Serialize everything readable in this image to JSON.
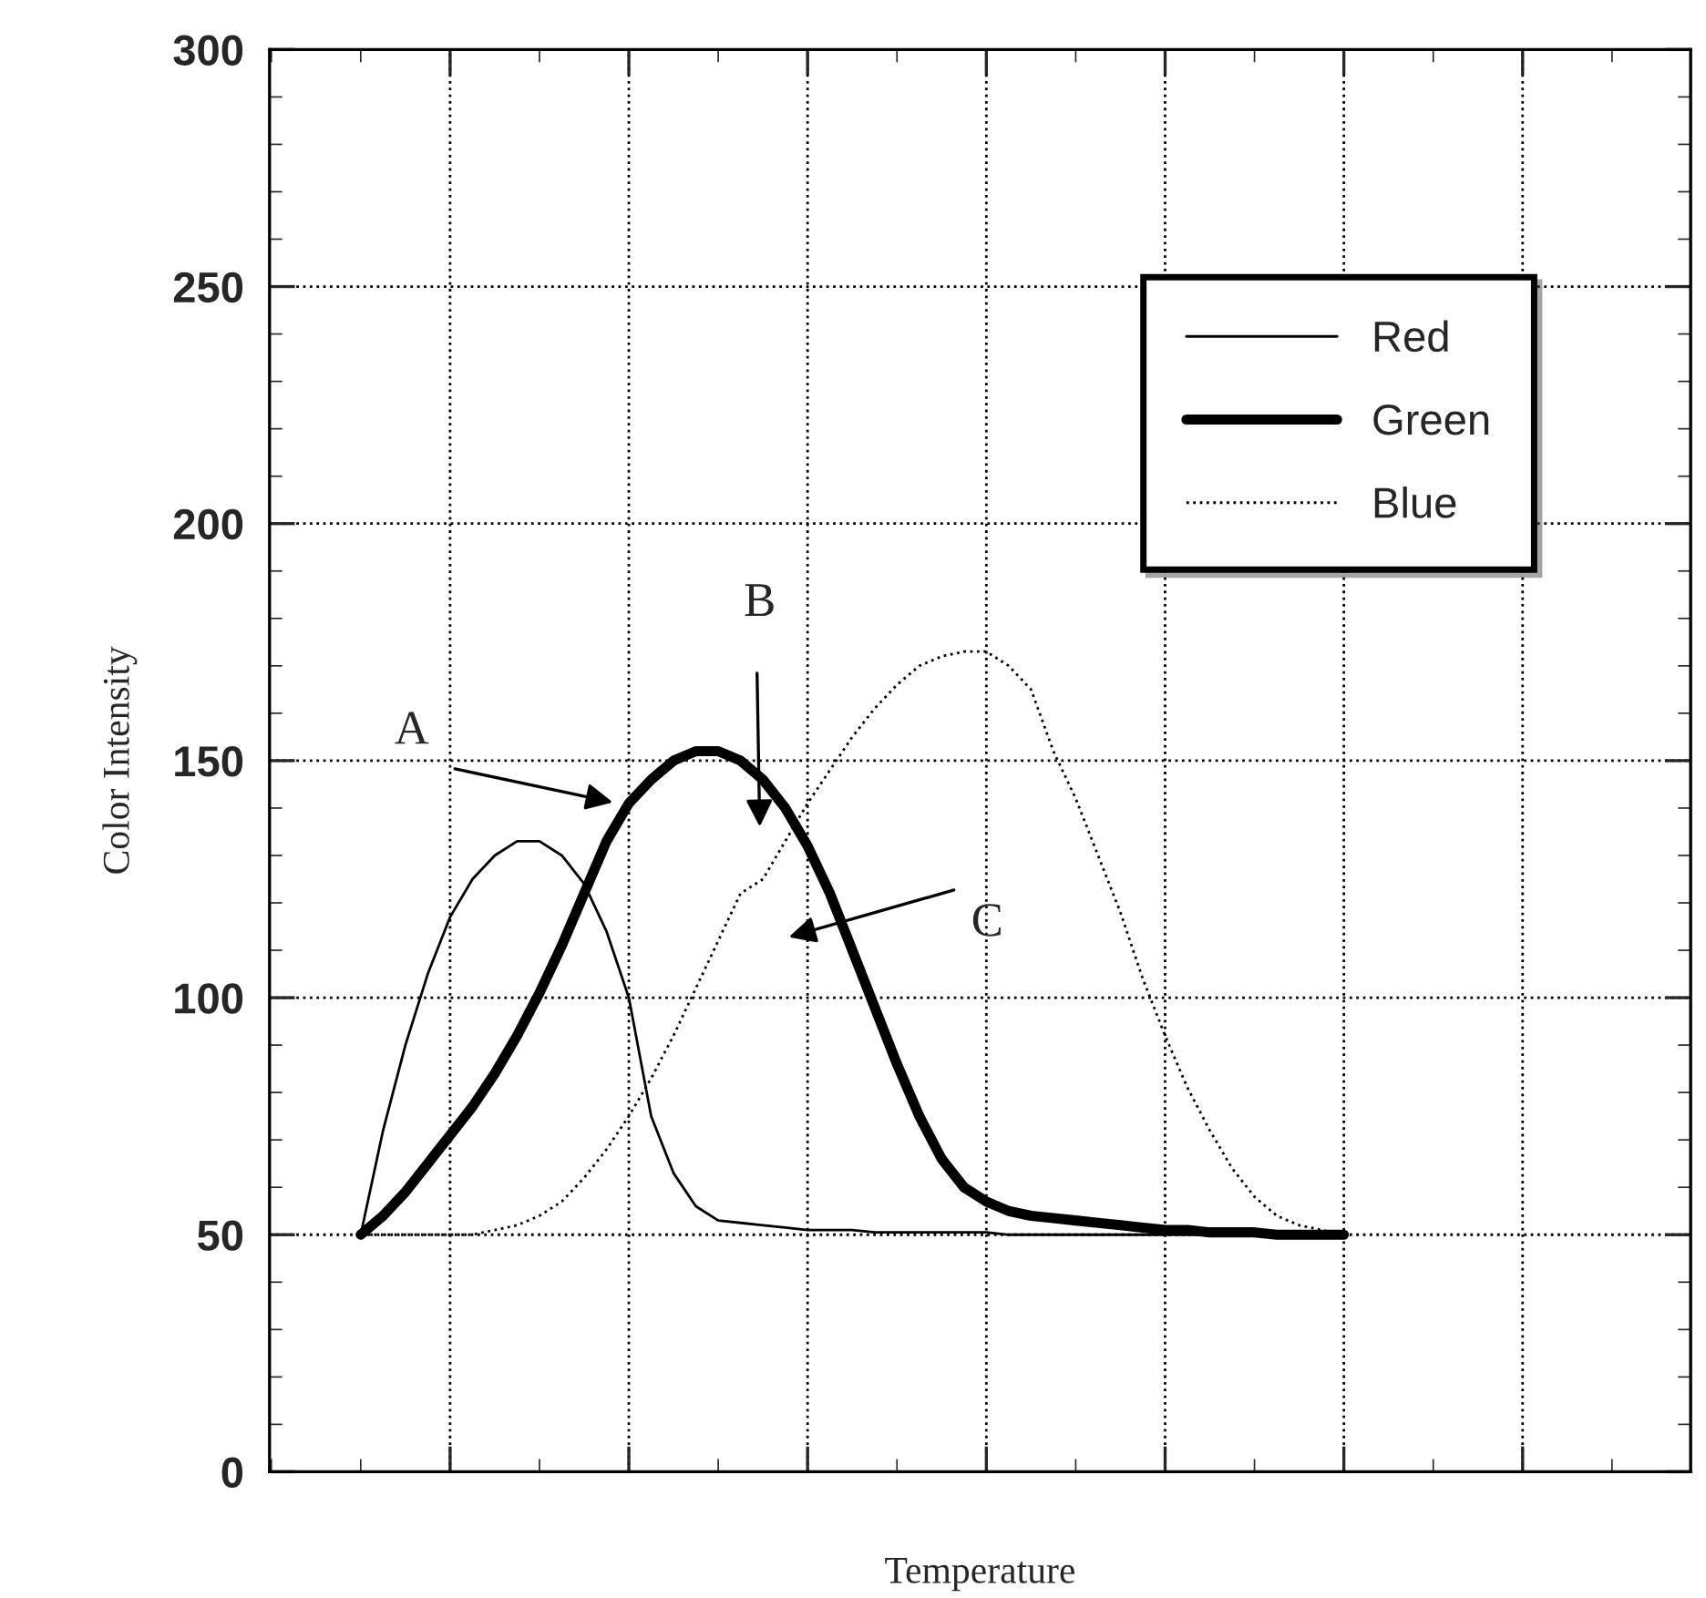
{
  "chart_data": {
    "type": "line",
    "xlabel": "Temperature",
    "ylabel": "Color Intensity",
    "categories": [
      null,
      null,
      null,
      null,
      null,
      null,
      null,
      null,
      null,
      null,
      null,
      null,
      null,
      null,
      null,
      null,
      null,
      null,
      null,
      null,
      null,
      null,
      null,
      null,
      null,
      null,
      null,
      null,
      null,
      null,
      null,
      null,
      null,
      null,
      null,
      null,
      null,
      null,
      null,
      null,
      null,
      null,
      null,
      null,
      null
    ],
    "series": [
      {
        "name": "Red",
        "color": "#000000",
        "line_style": "solid",
        "values": [
          50,
          72,
          90,
          105,
          117,
          125,
          130,
          133,
          133,
          130,
          124,
          114,
          100,
          75,
          63,
          56,
          53,
          52.5,
          52,
          51.5,
          51,
          51,
          51,
          50.5,
          50.5,
          50.5,
          50.5,
          50.5,
          50.5,
          50,
          50,
          50,
          50,
          50,
          50,
          50,
          50,
          50,
          50,
          50,
          50,
          50,
          50,
          50,
          50
        ]
      },
      {
        "name": "Green",
        "color": "#000000",
        "line_style": "solid",
        "values": [
          50,
          54,
          59,
          65,
          71,
          77,
          84,
          92,
          101,
          111,
          122,
          133,
          141,
          146,
          150,
          152,
          152,
          150,
          146,
          140,
          132,
          122,
          110,
          98,
          86,
          75,
          66,
          60,
          57,
          55,
          54,
          53.5,
          53,
          52.5,
          52,
          51.5,
          51,
          51,
          50.5,
          50.5,
          50.5,
          50,
          50,
          50,
          50
        ]
      },
      {
        "name": "Blue",
        "color": "#000000",
        "line_style": "dotted",
        "values": [
          50,
          50,
          50,
          50,
          50,
          50,
          51,
          52,
          54,
          57,
          62,
          68,
          75,
          83,
          92,
          102,
          112,
          122,
          125,
          133,
          141,
          148,
          155,
          161,
          166,
          170,
          172,
          173,
          173,
          170,
          165,
          152,
          142,
          130,
          118,
          104,
          92,
          81,
          72,
          64,
          58,
          54,
          52,
          51,
          50
        ]
      }
    ],
    "ylim": [
      0,
      300
    ],
    "yticks": [
      0,
      50,
      100,
      150,
      200,
      250,
      300
    ],
    "grid": true,
    "legend": "top right",
    "annotations": [
      "A",
      "B",
      "C"
    ]
  }
}
